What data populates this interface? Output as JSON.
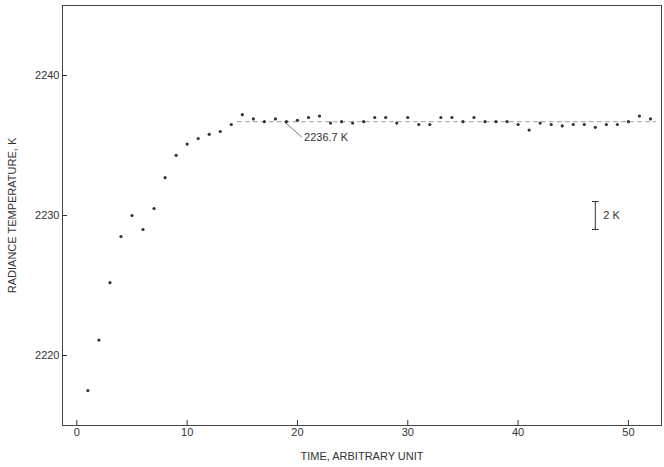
{
  "chart_data": {
    "type": "scatter",
    "x_label": "TIME, ARBITRARY UNIT",
    "y_label": "RADIANCE TEMPERATURE, K",
    "x": [
      1,
      2,
      3,
      4,
      5,
      6,
      7,
      8,
      9,
      10,
      11,
      12,
      13,
      14,
      15,
      16,
      17,
      18,
      19,
      20,
      21,
      22,
      23,
      24,
      25,
      26,
      27,
      28,
      29,
      30,
      31,
      32,
      33,
      34,
      35,
      36,
      37,
      38,
      39,
      40,
      41,
      42,
      43,
      44,
      45,
      46,
      47,
      48,
      49,
      50,
      51,
      52
    ],
    "values": [
      2217.5,
      2221.1,
      2225.2,
      2228.5,
      2230.0,
      2229.0,
      2230.5,
      2232.7,
      2234.3,
      2235.1,
      2235.5,
      2235.8,
      2236.0,
      2236.5,
      2237.2,
      2236.9,
      2236.7,
      2236.9,
      2236.7,
      2236.8,
      2237.0,
      2237.1,
      2236.6,
      2236.7,
      2236.6,
      2236.7,
      2237.0,
      2237.0,
      2236.6,
      2237.0,
      2236.5,
      2236.5,
      2237.0,
      2237.0,
      2236.7,
      2237.0,
      2236.7,
      2236.7,
      2236.7,
      2236.5,
      2236.1,
      2236.6,
      2236.5,
      2236.4,
      2236.5,
      2236.5,
      2236.3,
      2236.5,
      2236.5,
      2236.7,
      2237.1,
      2236.9
    ],
    "color": "#333333",
    "marker": "circle",
    "xlim": [
      -1.3,
      53
    ],
    "xticks": [
      0,
      10,
      20,
      30,
      40,
      50
    ],
    "ylim": [
      2215,
      2245
    ],
    "yticks": [
      2220,
      2230,
      2240
    ],
    "grid": false,
    "reference_line": {
      "value": 2236.7,
      "x_start": 14.5,
      "x_end": 52.5,
      "line_style": "dashed",
      "color": "#888888",
      "label": "2236.7 K",
      "label_x": 20.6,
      "label_y": 2235.6,
      "pointer_x": 18.8
    },
    "scale_bar": {
      "value": 2,
      "label": "2 K",
      "x": 47,
      "y_center": 2230
    }
  }
}
